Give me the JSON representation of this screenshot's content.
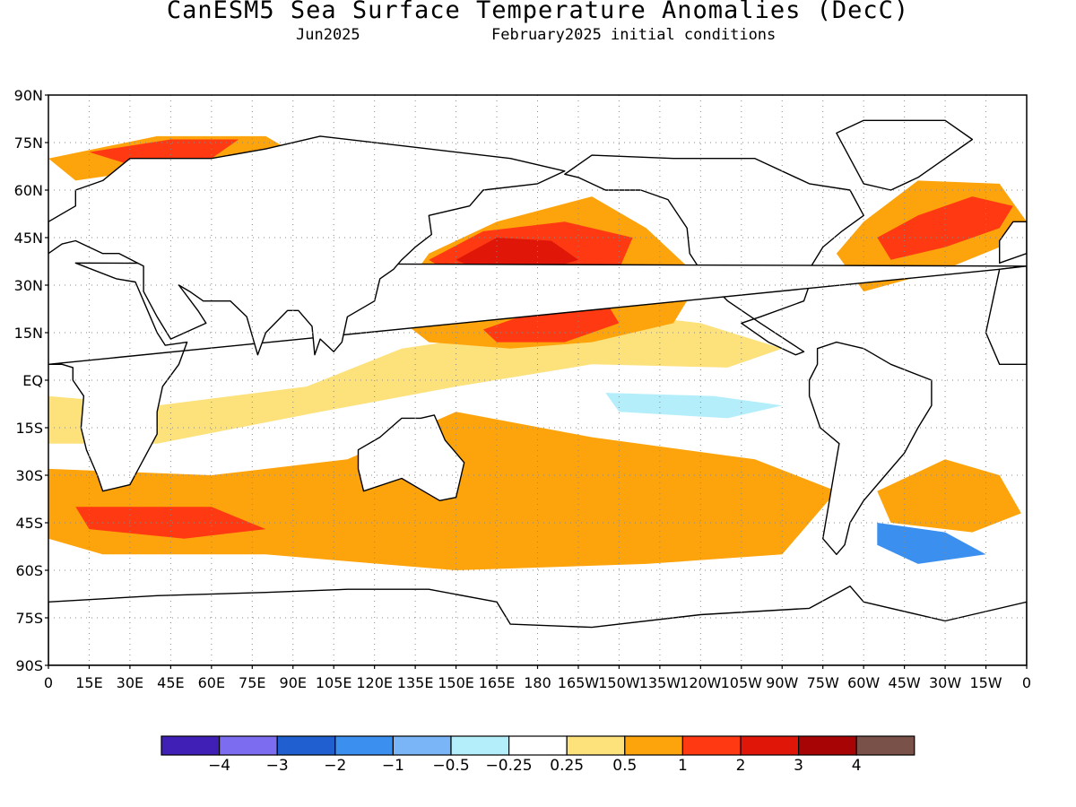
{
  "title": "CanESM5 Sea Surface Temperature Anomalies (DecC)",
  "subtitle_left": "Jun2025",
  "subtitle_right": "February2025 initial conditions",
  "map": {
    "lat_labels": [
      "90N",
      "75N",
      "60N",
      "45N",
      "30N",
      "15N",
      "EQ",
      "15S",
      "30S",
      "45S",
      "60S",
      "75S",
      "90S"
    ],
    "lat_values": [
      90,
      75,
      60,
      45,
      30,
      15,
      0,
      -15,
      -30,
      -45,
      -60,
      -75,
      -90
    ],
    "lon_labels": [
      "0",
      "15E",
      "30E",
      "45E",
      "60E",
      "75E",
      "90E",
      "105E",
      "120E",
      "135E",
      "150E",
      "165E",
      "180",
      "165W",
      "150W",
      "135W",
      "120W",
      "105W",
      "90W",
      "75W",
      "60W",
      "45W",
      "30W",
      "15W",
      "0"
    ],
    "lon_values": [
      0,
      15,
      30,
      45,
      60,
      75,
      90,
      105,
      120,
      135,
      150,
      165,
      180,
      195,
      210,
      225,
      240,
      255,
      270,
      285,
      300,
      315,
      330,
      345,
      360
    ],
    "grid": true
  },
  "colorbar": {
    "colors": [
      "#3f1fb5",
      "#7c6cf0",
      "#1f5fcf",
      "#3b8fef",
      "#7ab6f7",
      "#b3eefa",
      "#ffffff",
      "#fde17a",
      "#fda30c",
      "#ff3a12",
      "#df1608",
      "#a70406",
      "#7a5148"
    ],
    "labels": [
      "−4",
      "−3",
      "−2",
      "−1",
      "−0.5",
      "−0.25",
      "0.25",
      "0.5",
      "1",
      "2",
      "3",
      "4"
    ]
  },
  "anomaly_regions": [
    {
      "level": 0.5,
      "points": [
        [
          0,
          -28
        ],
        [
          60,
          -30
        ],
        [
          110,
          -25
        ],
        [
          150,
          -10
        ],
        [
          200,
          -18
        ],
        [
          260,
          -25
        ],
        [
          290,
          -35
        ],
        [
          270,
          -55
        ],
        [
          220,
          -58
        ],
        [
          150,
          -60
        ],
        [
          80,
          -55
        ],
        [
          20,
          -55
        ],
        [
          0,
          -50
        ]
      ]
    },
    {
      "level": 0.25,
      "points": [
        [
          0,
          -5
        ],
        [
          40,
          -8
        ],
        [
          95,
          -2
        ],
        [
          130,
          10
        ],
        [
          170,
          15
        ],
        [
          200,
          22
        ],
        [
          240,
          18
        ],
        [
          270,
          10
        ],
        [
          250,
          4
        ],
        [
          200,
          5
        ],
        [
          150,
          -2
        ],
        [
          100,
          -10
        ],
        [
          40,
          -20
        ],
        [
          0,
          -20
        ]
      ]
    },
    {
      "level": 0.5,
      "points": [
        [
          125,
          22
        ],
        [
          140,
          40
        ],
        [
          165,
          50
        ],
        [
          200,
          58
        ],
        [
          220,
          48
        ],
        [
          240,
          32
        ],
        [
          230,
          18
        ],
        [
          200,
          12
        ],
        [
          170,
          10
        ],
        [
          140,
          12
        ]
      ]
    },
    {
      "level": 1,
      "points": [
        [
          140,
          38
        ],
        [
          160,
          47
        ],
        [
          190,
          50
        ],
        [
          215,
          45
        ],
        [
          210,
          35
        ],
        [
          180,
          30
        ],
        [
          155,
          30
        ]
      ]
    },
    {
      "level": 2,
      "points": [
        [
          150,
          38
        ],
        [
          165,
          45
        ],
        [
          185,
          44
        ],
        [
          195,
          38
        ],
        [
          180,
          34
        ],
        [
          160,
          34
        ]
      ]
    },
    {
      "level": 1,
      "points": [
        [
          160,
          16
        ],
        [
          180,
          22
        ],
        [
          205,
          25
        ],
        [
          210,
          18
        ],
        [
          190,
          12
        ],
        [
          165,
          12
        ]
      ]
    },
    {
      "level": 0.5,
      "points": [
        [
          300,
          28
        ],
        [
          330,
          35
        ],
        [
          350,
          42
        ],
        [
          360,
          50
        ],
        [
          350,
          62
        ],
        [
          320,
          63
        ],
        [
          300,
          50
        ],
        [
          290,
          40
        ]
      ]
    },
    {
      "level": 1,
      "points": [
        [
          310,
          38
        ],
        [
          330,
          42
        ],
        [
          350,
          48
        ],
        [
          355,
          55
        ],
        [
          340,
          58
        ],
        [
          320,
          52
        ],
        [
          305,
          45
        ]
      ]
    },
    {
      "level": -0.25,
      "points": [
        [
          205,
          -4
        ],
        [
          245,
          -5
        ],
        [
          270,
          -8
        ],
        [
          250,
          -12
        ],
        [
          210,
          -10
        ]
      ]
    },
    {
      "level": 0.5,
      "points": [
        [
          0,
          70
        ],
        [
          40,
          77
        ],
        [
          80,
          77
        ],
        [
          90,
          72
        ],
        [
          50,
          68
        ],
        [
          10,
          63
        ]
      ]
    },
    {
      "level": 1,
      "points": [
        [
          15,
          72
        ],
        [
          45,
          76
        ],
        [
          70,
          76
        ],
        [
          60,
          70
        ],
        [
          30,
          68
        ]
      ]
    },
    {
      "level": 0.5,
      "points": [
        [
          330,
          -25
        ],
        [
          350,
          -30
        ],
        [
          358,
          -42
        ],
        [
          340,
          -48
        ],
        [
          310,
          -45
        ],
        [
          305,
          -35
        ]
      ]
    },
    {
      "level": 1,
      "points": [
        [
          10,
          -40
        ],
        [
          60,
          -40
        ],
        [
          80,
          -47
        ],
        [
          50,
          -50
        ],
        [
          15,
          -47
        ]
      ]
    },
    {
      "level": -1,
      "points": [
        [
          305,
          -45
        ],
        [
          330,
          -48
        ],
        [
          345,
          -55
        ],
        [
          320,
          -58
        ],
        [
          305,
          -52
        ]
      ]
    }
  ],
  "land_polygons": [
    {
      "name": "north-america",
      "points": [
        [
          190,
          65
        ],
        [
          200,
          71
        ],
        [
          230,
          70
        ],
        [
          260,
          70
        ],
        [
          280,
          62
        ],
        [
          295,
          60
        ],
        [
          300,
          52
        ],
        [
          292,
          47
        ],
        [
          285,
          42
        ],
        [
          280,
          35
        ],
        [
          280,
          30
        ],
        [
          278,
          25
        ],
        [
          262,
          20
        ],
        [
          255,
          18
        ],
        [
          265,
          12
        ],
        [
          275,
          8
        ],
        [
          278,
          9
        ],
        [
          262,
          18
        ],
        [
          250,
          25
        ],
        [
          242,
          32
        ],
        [
          236,
          40
        ],
        [
          235,
          48
        ],
        [
          228,
          57
        ],
        [
          218,
          60
        ],
        [
          205,
          60
        ],
        [
          195,
          64
        ]
      ]
    },
    {
      "name": "greenland",
      "points": [
        [
          300,
          62
        ],
        [
          310,
          60
        ],
        [
          320,
          64
        ],
        [
          330,
          70
        ],
        [
          340,
          76
        ],
        [
          330,
          82
        ],
        [
          300,
          82
        ],
        [
          290,
          78
        ]
      ]
    },
    {
      "name": "south-america",
      "points": [
        [
          283,
          10
        ],
        [
          290,
          12
        ],
        [
          300,
          10
        ],
        [
          310,
          5
        ],
        [
          325,
          0
        ],
        [
          325,
          -8
        ],
        [
          320,
          -15
        ],
        [
          315,
          -23
        ],
        [
          308,
          -30
        ],
        [
          300,
          -38
        ],
        [
          295,
          -45
        ],
        [
          293,
          -52
        ],
        [
          290,
          -55
        ],
        [
          285,
          -50
        ],
        [
          287,
          -40
        ],
        [
          289,
          -30
        ],
        [
          291,
          -20
        ],
        [
          284,
          -15
        ],
        [
          280,
          -5
        ],
        [
          280,
          0
        ],
        [
          283,
          5
        ]
      ]
    },
    {
      "name": "africa",
      "points": [
        [
          350,
          35
        ],
        [
          360,
          36
        ],
        [
          360,
          36
        ],
        [
          10,
          37
        ],
        [
          25,
          32
        ],
        [
          32,
          31
        ],
        [
          35,
          25
        ],
        [
          40,
          15
        ],
        [
          43,
          11
        ],
        [
          51,
          12
        ],
        [
          48,
          5
        ],
        [
          42,
          -2
        ],
        [
          40,
          -10
        ],
        [
          40,
          -17
        ],
        [
          35,
          -25
        ],
        [
          30,
          -33
        ],
        [
          20,
          -35
        ],
        [
          18,
          -30
        ],
        [
          14,
          -22
        ],
        [
          12,
          -15
        ],
        [
          13,
          -5
        ],
        [
          9,
          0
        ],
        [
          9,
          4
        ],
        [
          5,
          5
        ],
        [
          0,
          5
        ]
      ]
    },
    {
      "name": "africa-west",
      "points": [
        [
          345,
          15
        ],
        [
          350,
          35
        ],
        [
          360,
          36
        ],
        [
          360,
          5
        ],
        [
          350,
          5
        ]
      ]
    },
    {
      "name": "eurasia",
      "points": [
        [
          0,
          50
        ],
        [
          10,
          55
        ],
        [
          10,
          60
        ],
        [
          20,
          63
        ],
        [
          30,
          70
        ],
        [
          60,
          70
        ],
        [
          80,
          73
        ],
        [
          100,
          77
        ],
        [
          140,
          73
        ],
        [
          170,
          70
        ],
        [
          190,
          66
        ],
        [
          180,
          62
        ],
        [
          160,
          60
        ],
        [
          155,
          55
        ],
        [
          140,
          52
        ],
        [
          141,
          46
        ],
        [
          135,
          42
        ],
        [
          130,
          38
        ],
        [
          127,
          35
        ],
        [
          122,
          32
        ],
        [
          120,
          25
        ],
        [
          110,
          20
        ],
        [
          108,
          12
        ],
        [
          105,
          9
        ],
        [
          100,
          13
        ],
        [
          98,
          8
        ],
        [
          97,
          17
        ],
        [
          92,
          22
        ],
        [
          88,
          22
        ],
        [
          80,
          15
        ],
        [
          77,
          8
        ],
        [
          73,
          20
        ],
        [
          67,
          25
        ],
        [
          57,
          25
        ],
        [
          52,
          28
        ],
        [
          48,
          30
        ],
        [
          55,
          22
        ],
        [
          58,
          18
        ],
        [
          45,
          13
        ],
        [
          40,
          20
        ],
        [
          35,
          28
        ],
        [
          35,
          36
        ],
        [
          26,
          40
        ],
        [
          20,
          40
        ],
        [
          10,
          44
        ],
        [
          5,
          43
        ],
        [
          0,
          40
        ]
      ]
    },
    {
      "name": "europe-west",
      "points": [
        [
          350,
          37
        ],
        [
          360,
          40
        ],
        [
          360,
          50
        ],
        [
          355,
          50
        ],
        [
          350,
          44
        ]
      ]
    },
    {
      "name": "australia",
      "points": [
        [
          114,
          -22
        ],
        [
          122,
          -18
        ],
        [
          130,
          -12
        ],
        [
          137,
          -12
        ],
        [
          142,
          -11
        ],
        [
          146,
          -19
        ],
        [
          153,
          -26
        ],
        [
          150,
          -37
        ],
        [
          144,
          -38
        ],
        [
          138,
          -35
        ],
        [
          130,
          -31
        ],
        [
          116,
          -35
        ],
        [
          114,
          -28
        ]
      ]
    },
    {
      "name": "antarctica",
      "points": [
        [
          0,
          -70
        ],
        [
          40,
          -68
        ],
        [
          80,
          -67
        ],
        [
          110,
          -66
        ],
        [
          140,
          -66
        ],
        [
          165,
          -70
        ],
        [
          170,
          -77
        ],
        [
          200,
          -78
        ],
        [
          240,
          -74
        ],
        [
          280,
          -72
        ],
        [
          295,
          -65
        ],
        [
          300,
          -70
        ],
        [
          330,
          -76
        ],
        [
          360,
          -70
        ],
        [
          360,
          -90
        ],
        [
          0,
          -90
        ]
      ]
    }
  ]
}
